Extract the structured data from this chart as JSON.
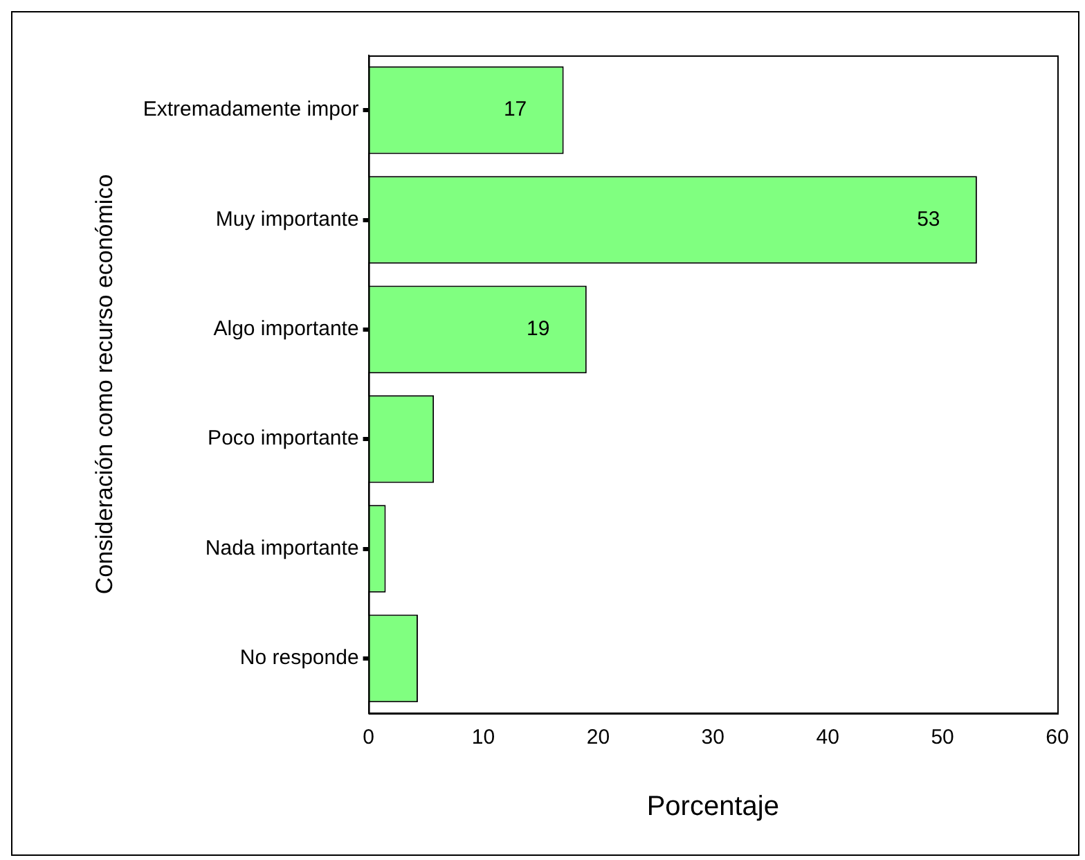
{
  "chart_data": {
    "type": "bar",
    "orientation": "horizontal",
    "xlabel": "Porcentaje",
    "ylabel": "Consideración como recurso económico",
    "categories": [
      "Extremadamente impor",
      "Muy importante",
      "Algo importante",
      "Poco importante",
      "Nada importante",
      "No responde"
    ],
    "values": [
      17,
      53,
      19,
      5.7,
      1.5,
      4.3
    ],
    "value_labels": [
      "17",
      "53",
      "19",
      null,
      null,
      null
    ],
    "color": "#80ff80",
    "xlim": [
      0,
      60
    ],
    "xticks": [
      0,
      10,
      20,
      30,
      40,
      50,
      60
    ],
    "grid": false,
    "legend": false
  }
}
